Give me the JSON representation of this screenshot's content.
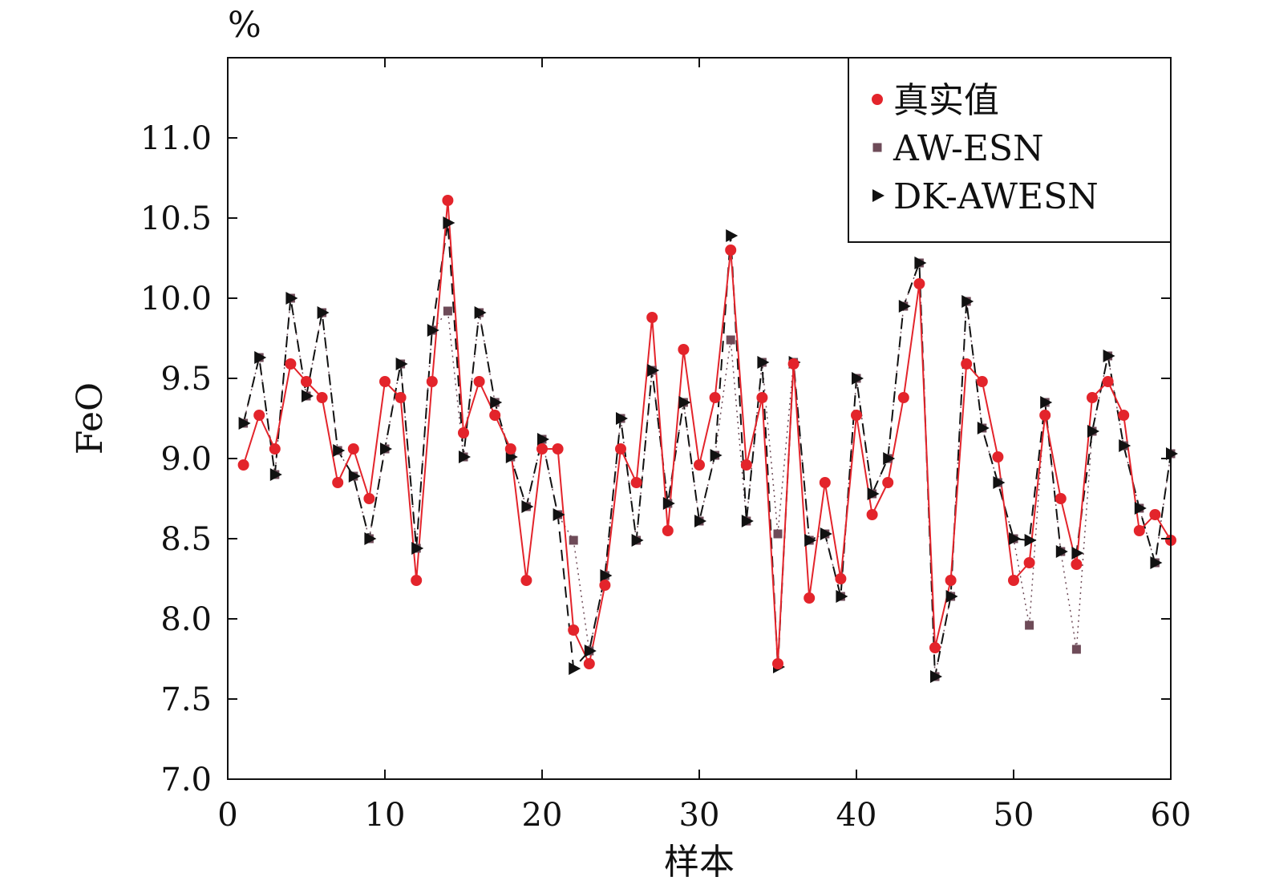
{
  "chart_data": {
    "type": "line",
    "unit_label": "%",
    "xlabel": "样本",
    "ylabel": "FeO",
    "xlim": [
      0,
      60
    ],
    "ylim": [
      7.0,
      11.5
    ],
    "xticks": [
      0,
      10,
      20,
      30,
      40,
      50,
      60
    ],
    "yticks": [
      "7.0",
      "7.5",
      "8.0",
      "8.5",
      "9.0",
      "9.5",
      "10.0",
      "10.5",
      "11.0"
    ],
    "grid": false,
    "legend_position": "top-right",
    "x": [
      1,
      2,
      3,
      4,
      5,
      6,
      7,
      8,
      9,
      10,
      11,
      12,
      13,
      14,
      15,
      16,
      17,
      18,
      19,
      20,
      21,
      22,
      23,
      24,
      25,
      26,
      27,
      28,
      29,
      30,
      31,
      32,
      33,
      34,
      35,
      36,
      37,
      38,
      39,
      40,
      41,
      42,
      43,
      44,
      45,
      46,
      47,
      48,
      49,
      50,
      51,
      52,
      53,
      54,
      55,
      56,
      57,
      58,
      59,
      60
    ],
    "series": [
      {
        "name": "真实值",
        "color": "#e3242b",
        "marker": "circle",
        "line": "solid",
        "values": [
          8.96,
          9.27,
          9.06,
          9.59,
          9.48,
          9.38,
          8.85,
          9.06,
          8.75,
          9.48,
          9.38,
          8.24,
          9.48,
          10.61,
          9.16,
          9.48,
          9.27,
          9.06,
          8.24,
          9.06,
          9.06,
          7.93,
          7.72,
          8.21,
          9.06,
          8.85,
          9.88,
          8.55,
          9.68,
          8.96,
          9.38,
          10.3,
          8.96,
          9.38,
          7.72,
          9.59,
          8.13,
          8.85,
          8.25,
          9.27,
          8.65,
          8.85,
          9.38,
          10.09,
          7.82,
          8.24,
          9.59,
          9.48,
          9.01,
          8.24,
          8.35,
          9.27,
          8.75,
          8.34,
          9.38,
          9.48,
          9.27,
          8.55,
          8.65,
          8.49
        ]
      },
      {
        "name": "AW-ESN",
        "color": "#6e4b58",
        "marker": "square",
        "line": "dotted",
        "values": [
          9.22,
          9.63,
          8.9,
          10.0,
          9.39,
          9.91,
          9.05,
          8.89,
          8.5,
          9.06,
          9.59,
          8.44,
          9.8,
          9.92,
          9.01,
          9.91,
          9.35,
          9.01,
          8.7,
          9.12,
          8.65,
          8.49,
          7.8,
          8.27,
          9.25,
          8.49,
          9.55,
          8.72,
          9.35,
          8.61,
          9.02,
          9.74,
          8.61,
          9.6,
          8.53,
          9.6,
          8.49,
          8.53,
          8.14,
          9.5,
          8.78,
          9.0,
          9.95,
          10.22,
          7.64,
          8.14,
          9.98,
          9.19,
          8.85,
          8.5,
          7.96,
          9.35,
          8.42,
          7.81,
          9.17,
          9.64,
          9.08,
          8.69,
          8.35,
          9.03
        ]
      },
      {
        "name": "DK-AWESN",
        "color": "#111111",
        "marker": "triangle-right",
        "line": "dashed",
        "values": [
          9.22,
          9.63,
          8.9,
          10.0,
          9.39,
          9.91,
          9.05,
          8.89,
          8.5,
          9.06,
          9.59,
          8.44,
          9.8,
          10.47,
          9.01,
          9.91,
          9.35,
          9.01,
          8.7,
          9.12,
          8.65,
          7.69,
          7.8,
          8.27,
          9.25,
          8.49,
          9.55,
          8.72,
          9.35,
          8.61,
          9.02,
          10.39,
          8.61,
          9.6,
          7.7,
          9.6,
          8.49,
          8.53,
          8.14,
          9.5,
          8.78,
          9.0,
          9.95,
          10.22,
          7.64,
          8.14,
          9.98,
          9.19,
          8.85,
          8.5,
          8.49,
          9.35,
          8.42,
          8.41,
          9.17,
          9.64,
          9.08,
          8.69,
          8.35,
          9.03
        ]
      }
    ]
  }
}
